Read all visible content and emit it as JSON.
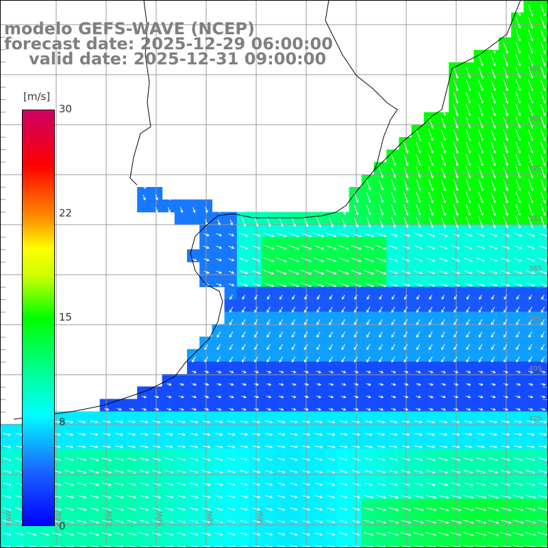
{
  "header": {
    "model_line": "modelo GEFS-WAVE (NCEP)",
    "forecast_line": "forecast date: 2025-12-29 06:00:00",
    "valid_line": "valid date: 2025-12-31 09:00:00"
  },
  "colorbar": {
    "unit": "[m/s]",
    "ticks": [
      "30",
      "22",
      "15",
      "8",
      "0"
    ],
    "range": [
      0,
      30
    ]
  },
  "map": {
    "variable": "wind speed and direction",
    "lat_range": [
      -42,
      -26
    ],
    "lon_range": [
      -68,
      -54
    ],
    "lat_labels": [
      "28S",
      "30S",
      "32S",
      "34S",
      "36S",
      "38S",
      "40S",
      "42S"
    ],
    "lon_labels": [
      "66W",
      "64W",
      "62W",
      "60W",
      "58W",
      "56W"
    ]
  },
  "palette": {
    "land": "#ffffff",
    "grid": "#999999",
    "coast": "#000000",
    "arrow": "#ffffff"
  }
}
